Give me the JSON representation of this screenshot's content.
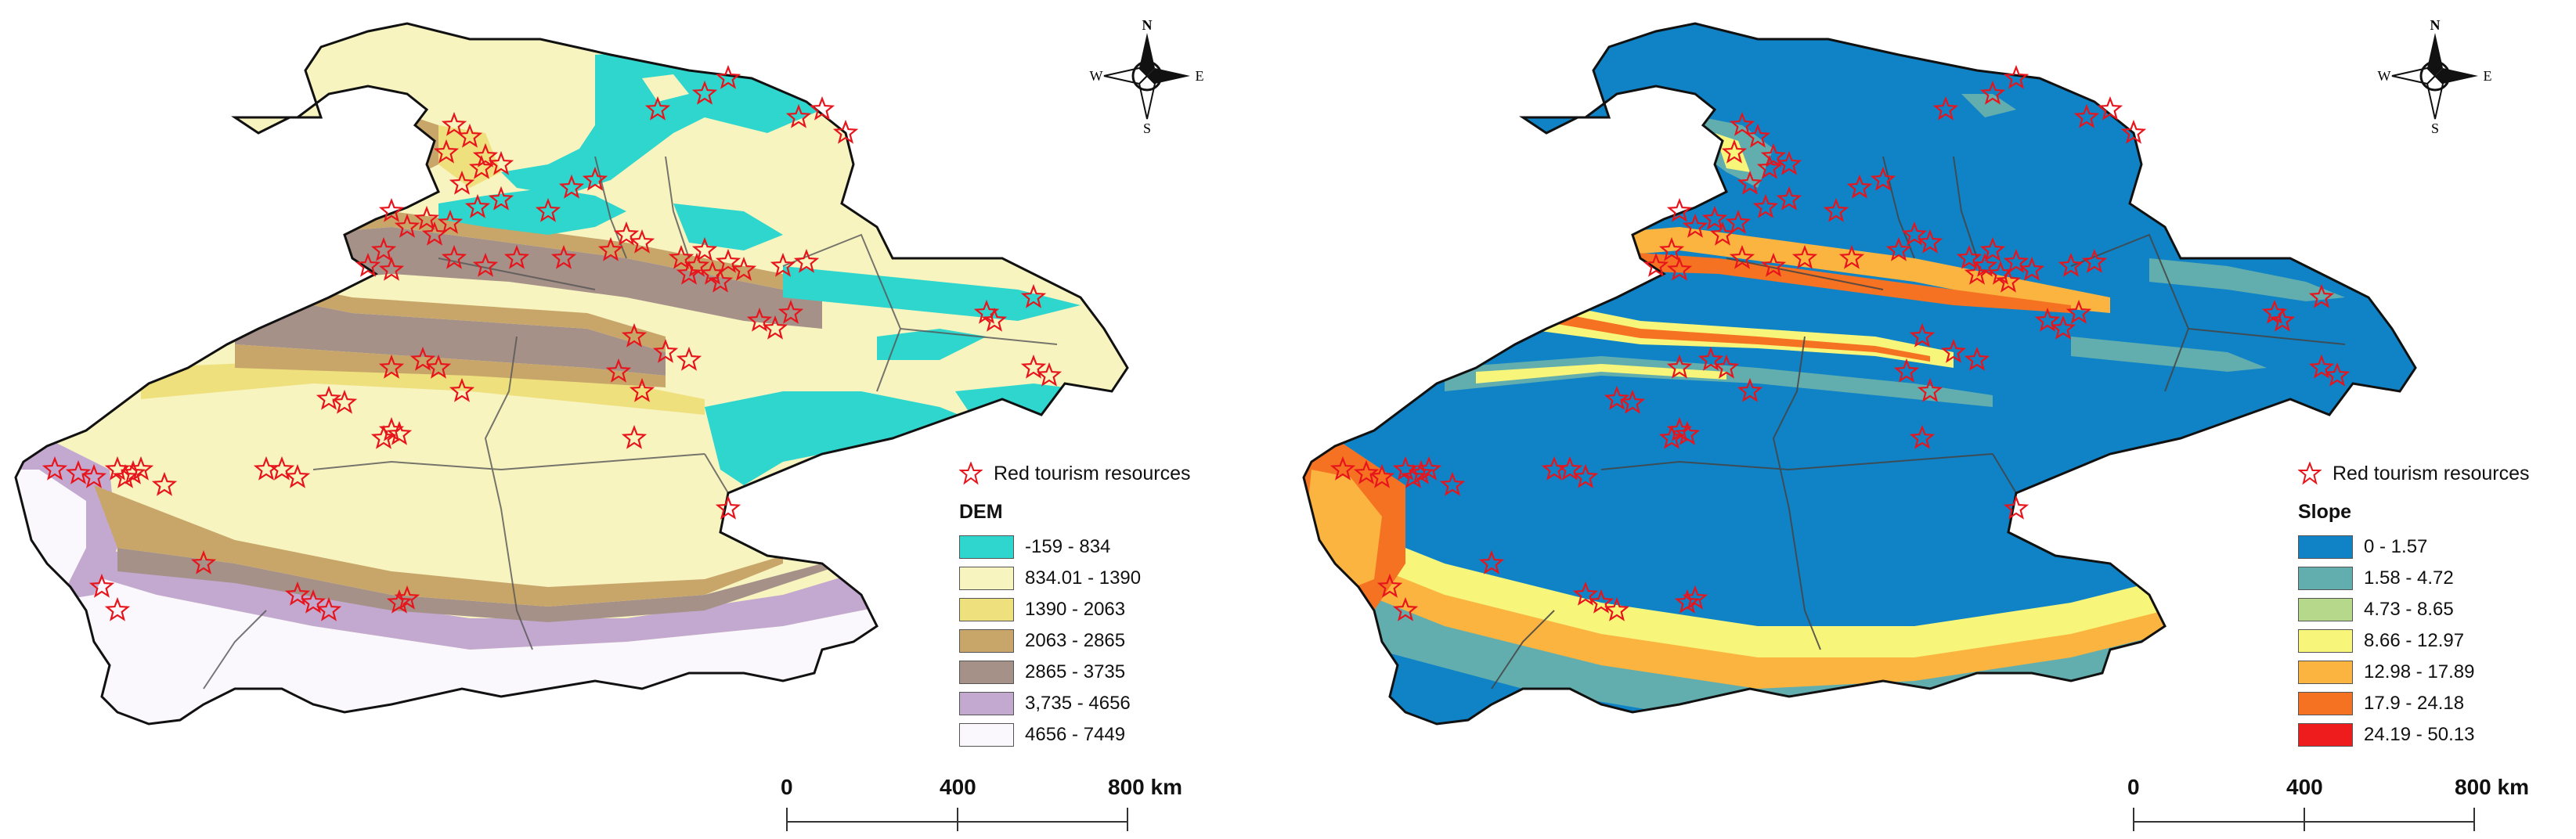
{
  "legend": {
    "point_label": "Red tourism resources"
  },
  "compass": {
    "n": "N",
    "s": "S",
    "e": "E",
    "w": "W"
  },
  "scalebar": {
    "ticks": [
      "0",
      "400",
      "800 km"
    ]
  },
  "maps": [
    {
      "id": "dem",
      "legend_title": "DEM",
      "classes": [
        {
          "label": "-159 - 834",
          "color": "#2fd6cd"
        },
        {
          "label": "834.01 - 1390",
          "color": "#f8f4c0"
        },
        {
          "label": "1390 - 2063",
          "color": "#efe07e"
        },
        {
          "label": "2063 - 2865",
          "color": "#c8a66a"
        },
        {
          "label": "2865 - 3735",
          "color": "#a69189"
        },
        {
          "label": "3,735 - 4656",
          "color": "#c3a9cf"
        },
        {
          "label": "4656 - 7449",
          "color": "#fbf8fd"
        }
      ]
    },
    {
      "id": "slope",
      "legend_title": "Slope",
      "classes": [
        {
          "label": "0 - 1.57",
          "color": "#0f83c6"
        },
        {
          "label": "1.58 - 4.72",
          "color": "#62aeae"
        },
        {
          "label": "4.73 - 8.65",
          "color": "#b5d88a"
        },
        {
          "label": "8.66 - 12.97",
          "color": "#f7f57a"
        },
        {
          "label": "12.98 - 17.89",
          "color": "#fbb440"
        },
        {
          "label": "17.9 - 24.18",
          "color": "#f57222"
        },
        {
          "label": "24.19 - 50.13",
          "color": "#ee1c1c"
        }
      ]
    }
  ],
  "star_color": "#e8141c"
}
